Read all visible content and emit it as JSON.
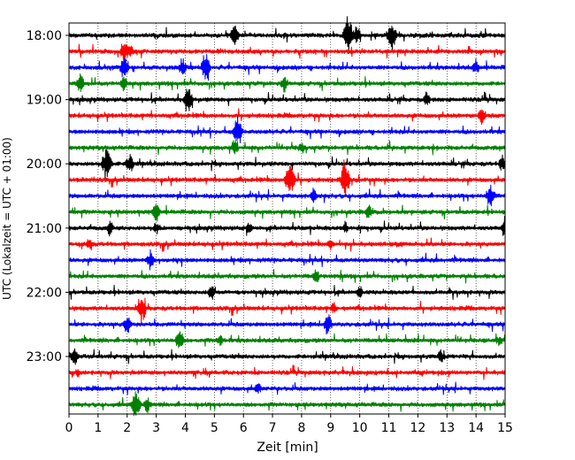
{
  "chart_data": {
    "type": "line",
    "title": "",
    "xlabel": "Zeit  [min]",
    "ylabel": "UTC (Lokalzeit = UTC + 01:00)",
    "xlim": [
      0,
      15
    ],
    "x_ticks": [
      "0",
      "1",
      "2",
      "3",
      "4",
      "5",
      "6",
      "7",
      "8",
      "9",
      "10",
      "11",
      "12",
      "13",
      "14",
      "15"
    ],
    "y_ticks": [
      "18:00",
      "19:00",
      "20:00",
      "21:00",
      "22:00",
      "23:00"
    ],
    "row_interval_min": 15,
    "start_time": "17:45",
    "end_time": "23:45",
    "grid": "vertical-dotted",
    "colors": [
      "#000000",
      "#ff0000",
      "#0000ff",
      "#008000"
    ],
    "rows": [
      {
        "time": "18:00",
        "color": "#000000",
        "events": [
          [
            5.7,
            0.6
          ],
          [
            9.6,
            1.0
          ],
          [
            9.9,
            0.5
          ],
          [
            11.1,
            0.9
          ]
        ]
      },
      {
        "time": "18:15",
        "color": "#ff0000",
        "events": [
          [
            1.9,
            0.6
          ],
          [
            2.1,
            0.4
          ]
        ]
      },
      {
        "time": "18:30",
        "color": "#0000ff",
        "events": [
          [
            1.9,
            0.7
          ],
          [
            3.9,
            0.5
          ],
          [
            4.7,
            0.8
          ],
          [
            14.0,
            0.4
          ]
        ]
      },
      {
        "time": "18:45",
        "color": "#008000",
        "events": [
          [
            0.4,
            0.5
          ],
          [
            1.9,
            0.4
          ],
          [
            7.4,
            0.4
          ]
        ]
      },
      {
        "time": "19:00",
        "color": "#000000",
        "events": [
          [
            4.1,
            0.8
          ],
          [
            12.3,
            0.4
          ]
        ]
      },
      {
        "time": "19:15",
        "color": "#ff0000",
        "events": [
          [
            14.2,
            0.5
          ]
        ]
      },
      {
        "time": "19:30",
        "color": "#0000ff",
        "events": [
          [
            5.8,
            0.9
          ]
        ]
      },
      {
        "time": "19:45",
        "color": "#008000",
        "events": [
          [
            5.7,
            0.4
          ],
          [
            8.0,
            0.3
          ]
        ]
      },
      {
        "time": "20:00",
        "color": "#000000",
        "events": [
          [
            1.3,
            1.0
          ],
          [
            2.1,
            0.6
          ],
          [
            14.9,
            0.4
          ]
        ]
      },
      {
        "time": "20:15",
        "color": "#ff0000",
        "events": [
          [
            7.6,
            1.0
          ],
          [
            9.5,
            0.9
          ]
        ]
      },
      {
        "time": "20:30",
        "color": "#0000ff",
        "events": [
          [
            8.4,
            0.4
          ],
          [
            14.5,
            0.7
          ]
        ]
      },
      {
        "time": "20:45",
        "color": "#008000",
        "events": [
          [
            3.0,
            0.5
          ],
          [
            10.3,
            0.4
          ]
        ]
      },
      {
        "time": "21:00",
        "color": "#000000",
        "events": [
          [
            1.4,
            0.4
          ],
          [
            3.0,
            0.3
          ],
          [
            6.2,
            0.3
          ],
          [
            9.5,
            0.3
          ],
          [
            15.0,
            0.4
          ]
        ]
      },
      {
        "time": "21:15",
        "color": "#ff0000",
        "events": [
          [
            0.7,
            0.3
          ],
          [
            9.0,
            0.3
          ]
        ]
      },
      {
        "time": "21:30",
        "color": "#0000ff",
        "events": [
          [
            2.8,
            0.5
          ]
        ]
      },
      {
        "time": "21:45",
        "color": "#008000",
        "events": [
          [
            8.5,
            0.4
          ]
        ]
      },
      {
        "time": "22:00",
        "color": "#000000",
        "events": [
          [
            4.9,
            0.4
          ],
          [
            10.0,
            0.3
          ]
        ]
      },
      {
        "time": "22:15",
        "color": "#ff0000",
        "events": [
          [
            2.5,
            0.8
          ],
          [
            9.1,
            0.3
          ]
        ]
      },
      {
        "time": "22:30",
        "color": "#0000ff",
        "events": [
          [
            2.0,
            0.6
          ],
          [
            8.9,
            0.6
          ]
        ]
      },
      {
        "time": "22:45",
        "color": "#008000",
        "events": [
          [
            3.8,
            0.6
          ],
          [
            5.2,
            0.3
          ],
          [
            14.8,
            0.3
          ]
        ]
      },
      {
        "time": "23:00",
        "color": "#000000",
        "events": [
          [
            0.2,
            0.5
          ],
          [
            12.8,
            0.4
          ]
        ]
      },
      {
        "time": "23:15",
        "color": "#ff0000",
        "events": [
          [
            0.3,
            0.2
          ]
        ]
      },
      {
        "time": "23:30",
        "color": "#0000ff",
        "events": [
          [
            6.5,
            0.3
          ]
        ]
      },
      {
        "time": "23:45",
        "color": "#008000",
        "events": [
          [
            2.3,
            0.9
          ],
          [
            2.7,
            0.4
          ]
        ]
      }
    ]
  }
}
